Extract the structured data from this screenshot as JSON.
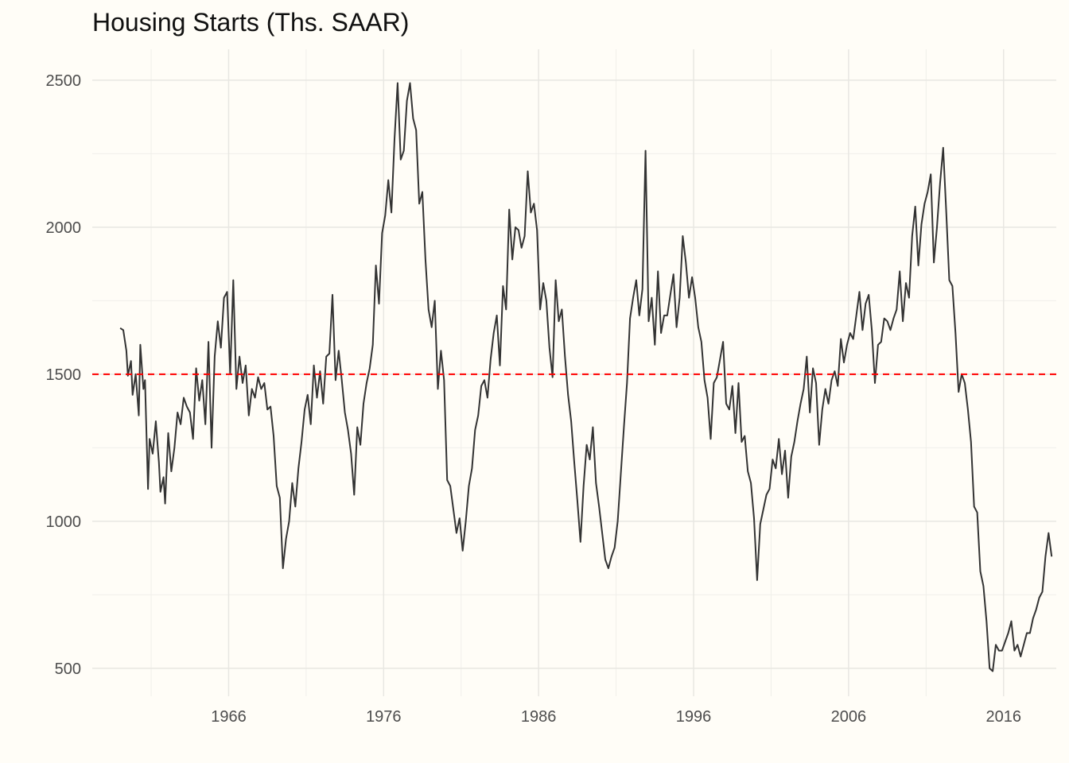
{
  "chart_data": {
    "type": "line",
    "title": "Housing Starts (Ths. SAAR)",
    "xlabel": "",
    "ylabel": "",
    "x_ticks": [
      1966,
      1976,
      1986,
      1996,
      2006,
      2016
    ],
    "y_ticks": [
      500,
      1000,
      1500,
      2000,
      2500
    ],
    "xlim": [
      1957.2,
      2019.4
    ],
    "ylim": [
      405,
      2605
    ],
    "grid": true,
    "legend": "none",
    "reference_line": {
      "y": 1500,
      "style": "dashed",
      "color": "#ff0000"
    },
    "line_color": "#333333",
    "series": [
      {
        "points": [
          [
            1959.0,
            1657
          ],
          [
            1959.2,
            1650
          ],
          [
            1959.4,
            1580
          ],
          [
            1959.5,
            1495
          ],
          [
            1959.7,
            1545
          ],
          [
            1959.8,
            1430
          ],
          [
            1960.0,
            1500
          ],
          [
            1960.2,
            1360
          ],
          [
            1960.3,
            1600
          ],
          [
            1960.5,
            1450
          ],
          [
            1960.6,
            1480
          ],
          [
            1960.8,
            1110
          ],
          [
            1960.9,
            1280
          ],
          [
            1961.1,
            1230
          ],
          [
            1961.3,
            1340
          ],
          [
            1961.5,
            1200
          ],
          [
            1961.6,
            1100
          ],
          [
            1961.8,
            1150
          ],
          [
            1961.9,
            1060
          ],
          [
            1962.1,
            1300
          ],
          [
            1962.3,
            1170
          ],
          [
            1962.5,
            1250
          ],
          [
            1962.7,
            1370
          ],
          [
            1962.9,
            1330
          ],
          [
            1963.1,
            1420
          ],
          [
            1963.3,
            1390
          ],
          [
            1963.5,
            1370
          ],
          [
            1963.7,
            1280
          ],
          [
            1963.9,
            1520
          ],
          [
            1964.1,
            1410
          ],
          [
            1964.3,
            1480
          ],
          [
            1964.5,
            1330
          ],
          [
            1964.7,
            1610
          ],
          [
            1964.9,
            1250
          ],
          [
            1965.1,
            1560
          ],
          [
            1965.3,
            1680
          ],
          [
            1965.5,
            1590
          ],
          [
            1965.7,
            1760
          ],
          [
            1965.9,
            1780
          ],
          [
            1966.1,
            1500
          ],
          [
            1966.3,
            1820
          ],
          [
            1966.5,
            1450
          ],
          [
            1966.7,
            1560
          ],
          [
            1966.9,
            1470
          ],
          [
            1967.1,
            1530
          ],
          [
            1967.3,
            1360
          ],
          [
            1967.5,
            1450
          ],
          [
            1967.7,
            1420
          ],
          [
            1967.9,
            1490
          ],
          [
            1968.1,
            1450
          ],
          [
            1968.3,
            1470
          ],
          [
            1968.5,
            1380
          ],
          [
            1968.7,
            1390
          ],
          [
            1968.9,
            1290
          ],
          [
            1969.1,
            1120
          ],
          [
            1969.3,
            1080
          ],
          [
            1969.5,
            840
          ],
          [
            1969.7,
            940
          ],
          [
            1969.9,
            1000
          ],
          [
            1970.1,
            1130
          ],
          [
            1970.3,
            1050
          ],
          [
            1970.5,
            1180
          ],
          [
            1970.7,
            1270
          ],
          [
            1970.9,
            1380
          ],
          [
            1971.1,
            1430
          ],
          [
            1971.3,
            1330
          ],
          [
            1971.5,
            1530
          ],
          [
            1971.7,
            1420
          ],
          [
            1971.9,
            1510
          ],
          [
            1972.1,
            1400
          ],
          [
            1972.3,
            1560
          ],
          [
            1972.5,
            1570
          ],
          [
            1972.7,
            1770
          ],
          [
            1972.9,
            1480
          ],
          [
            1973.1,
            1580
          ],
          [
            1973.3,
            1480
          ],
          [
            1973.5,
            1370
          ],
          [
            1973.7,
            1310
          ],
          [
            1973.9,
            1230
          ],
          [
            1974.1,
            1090
          ],
          [
            1974.3,
            1320
          ],
          [
            1974.5,
            1260
          ],
          [
            1974.7,
            1400
          ],
          [
            1974.9,
            1470
          ],
          [
            1975.1,
            1520
          ],
          [
            1975.3,
            1600
          ],
          [
            1975.5,
            1870
          ],
          [
            1975.7,
            1740
          ],
          [
            1975.9,
            1980
          ],
          [
            1976.1,
            2040
          ],
          [
            1976.3,
            2160
          ],
          [
            1976.5,
            2050
          ],
          [
            1976.7,
            2300
          ],
          [
            1976.9,
            2490
          ],
          [
            1977.1,
            2230
          ],
          [
            1977.3,
            2260
          ],
          [
            1977.5,
            2430
          ],
          [
            1977.7,
            2490
          ],
          [
            1977.9,
            2370
          ],
          [
            1978.1,
            2330
          ],
          [
            1978.3,
            2080
          ],
          [
            1978.5,
            2120
          ],
          [
            1978.7,
            1890
          ],
          [
            1978.9,
            1720
          ],
          [
            1979.1,
            1660
          ],
          [
            1979.3,
            1750
          ],
          [
            1979.5,
            1450
          ],
          [
            1979.7,
            1580
          ],
          [
            1979.9,
            1480
          ],
          [
            1980.1,
            1140
          ],
          [
            1980.3,
            1120
          ],
          [
            1980.5,
            1040
          ],
          [
            1980.7,
            960
          ],
          [
            1980.9,
            1010
          ],
          [
            1981.1,
            900
          ],
          [
            1981.3,
            1000
          ],
          [
            1981.5,
            1120
          ],
          [
            1981.7,
            1180
          ],
          [
            1981.9,
            1310
          ],
          [
            1982.1,
            1360
          ],
          [
            1982.3,
            1460
          ],
          [
            1982.5,
            1480
          ],
          [
            1982.7,
            1420
          ],
          [
            1982.9,
            1550
          ],
          [
            1983.1,
            1640
          ],
          [
            1983.3,
            1700
          ],
          [
            1983.5,
            1530
          ],
          [
            1983.7,
            1800
          ],
          [
            1983.9,
            1720
          ],
          [
            1984.1,
            2060
          ],
          [
            1984.3,
            1890
          ],
          [
            1984.5,
            2000
          ],
          [
            1984.7,
            1990
          ],
          [
            1984.9,
            1930
          ],
          [
            1985.1,
            1970
          ],
          [
            1985.3,
            2190
          ],
          [
            1985.5,
            2050
          ],
          [
            1985.7,
            2080
          ],
          [
            1985.9,
            1990
          ],
          [
            1986.1,
            1720
          ],
          [
            1986.3,
            1810
          ],
          [
            1986.5,
            1750
          ],
          [
            1986.7,
            1590
          ],
          [
            1986.9,
            1490
          ],
          [
            1987.1,
            1820
          ],
          [
            1987.3,
            1680
          ],
          [
            1987.5,
            1720
          ],
          [
            1987.7,
            1560
          ],
          [
            1987.9,
            1430
          ],
          [
            1988.1,
            1340
          ],
          [
            1988.3,
            1200
          ],
          [
            1988.5,
            1070
          ],
          [
            1988.7,
            930
          ],
          [
            1988.9,
            1120
          ],
          [
            1989.1,
            1260
          ],
          [
            1989.3,
            1210
          ],
          [
            1989.5,
            1320
          ],
          [
            1989.7,
            1130
          ],
          [
            1989.9,
            1050
          ],
          [
            1990.1,
            960
          ],
          [
            1990.3,
            870
          ],
          [
            1990.5,
            840
          ],
          [
            1990.7,
            880
          ],
          [
            1990.9,
            910
          ],
          [
            1991.1,
            1000
          ],
          [
            1991.3,
            1160
          ],
          [
            1991.5,
            1320
          ],
          [
            1991.7,
            1470
          ],
          [
            1991.9,
            1690
          ],
          [
            1992.1,
            1760
          ],
          [
            1992.3,
            1820
          ],
          [
            1992.5,
            1700
          ],
          [
            1992.7,
            1790
          ],
          [
            1992.9,
            2260
          ],
          [
            1993.1,
            1680
          ],
          [
            1993.3,
            1760
          ],
          [
            1993.5,
            1600
          ],
          [
            1993.7,
            1850
          ],
          [
            1993.9,
            1640
          ],
          [
            1994.1,
            1700
          ],
          [
            1994.3,
            1700
          ],
          [
            1994.5,
            1770
          ],
          [
            1994.7,
            1840
          ],
          [
            1994.9,
            1660
          ],
          [
            1995.1,
            1760
          ],
          [
            1995.3,
            1970
          ],
          [
            1995.5,
            1880
          ],
          [
            1995.7,
            1760
          ],
          [
            1995.9,
            1830
          ],
          [
            1996.1,
            1760
          ],
          [
            1996.3,
            1660
          ],
          [
            1996.5,
            1610
          ],
          [
            1996.7,
            1480
          ],
          [
            1996.9,
            1420
          ],
          [
            1997.1,
            1280
          ],
          [
            1997.3,
            1470
          ],
          [
            1997.5,
            1490
          ],
          [
            1997.7,
            1550
          ],
          [
            1997.9,
            1610
          ],
          [
            1998.1,
            1400
          ],
          [
            1998.3,
            1380
          ],
          [
            1998.5,
            1460
          ],
          [
            1998.7,
            1300
          ],
          [
            1998.9,
            1470
          ],
          [
            1999.1,
            1270
          ],
          [
            1999.3,
            1290
          ],
          [
            1999.5,
            1170
          ],
          [
            1999.7,
            1130
          ],
          [
            1999.9,
            1010
          ],
          [
            2000.1,
            800
          ],
          [
            2000.3,
            990
          ],
          [
            2000.5,
            1040
          ],
          [
            2000.7,
            1090
          ],
          [
            2000.9,
            1110
          ],
          [
            2001.1,
            1210
          ],
          [
            2001.3,
            1180
          ],
          [
            2001.5,
            1280
          ],
          [
            2001.7,
            1160
          ],
          [
            2001.9,
            1240
          ],
          [
            2002.1,
            1080
          ],
          [
            2002.3,
            1220
          ],
          [
            2002.5,
            1270
          ],
          [
            2002.7,
            1340
          ],
          [
            2002.9,
            1400
          ],
          [
            2003.1,
            1450
          ],
          [
            2003.3,
            1560
          ],
          [
            2003.5,
            1370
          ],
          [
            2003.7,
            1520
          ],
          [
            2003.9,
            1470
          ],
          [
            2004.1,
            1260
          ],
          [
            2004.3,
            1380
          ],
          [
            2004.5,
            1450
          ],
          [
            2004.7,
            1400
          ],
          [
            2004.9,
            1480
          ],
          [
            2005.1,
            1510
          ],
          [
            2005.3,
            1460
          ],
          [
            2005.5,
            1620
          ],
          [
            2005.7,
            1540
          ],
          [
            2005.9,
            1600
          ],
          [
            2006.1,
            1640
          ],
          [
            2006.3,
            1620
          ],
          [
            2006.5,
            1700
          ],
          [
            2006.7,
            1780
          ],
          [
            2006.9,
            1650
          ],
          [
            2007.1,
            1740
          ],
          [
            2007.3,
            1770
          ],
          [
            2007.5,
            1650
          ],
          [
            2007.7,
            1470
          ],
          [
            2007.9,
            1600
          ],
          [
            2008.1,
            1610
          ],
          [
            2008.3,
            1690
          ],
          [
            2008.5,
            1680
          ],
          [
            2008.7,
            1650
          ],
          [
            2008.9,
            1690
          ],
          [
            2009.1,
            1720
          ],
          [
            2009.3,
            1850
          ],
          [
            2009.5,
            1680
          ],
          [
            2009.7,
            1810
          ],
          [
            2009.9,
            1760
          ],
          [
            2010.1,
            1970
          ],
          [
            2010.3,
            2070
          ],
          [
            2010.5,
            1870
          ],
          [
            2010.7,
            2010
          ],
          [
            2010.9,
            2080
          ],
          [
            2011.1,
            2120
          ],
          [
            2011.3,
            2180
          ],
          [
            2011.5,
            1880
          ],
          [
            2011.7,
            2000
          ],
          [
            2011.9,
            2150
          ],
          [
            2012.1,
            2270
          ],
          [
            2012.3,
            2050
          ],
          [
            2012.5,
            1820
          ],
          [
            2012.7,
            1800
          ],
          [
            2012.9,
            1640
          ],
          [
            2013.1,
            1440
          ],
          [
            2013.3,
            1500
          ],
          [
            2013.5,
            1470
          ],
          [
            2013.7,
            1380
          ],
          [
            2013.9,
            1270
          ],
          [
            2014.1,
            1050
          ],
          [
            2014.3,
            1030
          ],
          [
            2014.5,
            830
          ],
          [
            2014.7,
            780
          ],
          [
            2014.9,
            660
          ],
          [
            2015.1,
            500
          ],
          [
            2015.3,
            490
          ],
          [
            2015.5,
            580
          ],
          [
            2015.7,
            560
          ],
          [
            2015.9,
            560
          ],
          [
            2016.1,
            590
          ],
          [
            2016.3,
            620
          ],
          [
            2016.5,
            660
          ],
          [
            2016.7,
            560
          ],
          [
            2016.9,
            580
          ],
          [
            2017.1,
            540
          ],
          [
            2017.3,
            580
          ],
          [
            2017.5,
            620
          ],
          [
            2017.7,
            620
          ],
          [
            2017.9,
            670
          ],
          [
            2018.1,
            700
          ],
          [
            2018.3,
            740
          ],
          [
            2018.5,
            760
          ],
          [
            2018.7,
            880
          ],
          [
            2018.9,
            960
          ],
          [
            2019.1,
            880
          ]
        ]
      }
    ]
  }
}
